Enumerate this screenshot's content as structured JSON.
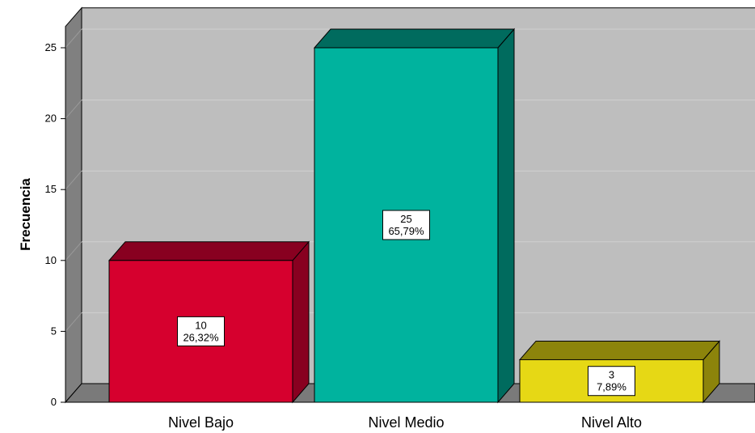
{
  "chart_data": {
    "type": "bar",
    "title": "",
    "xlabel": "",
    "ylabel": "Frecuencia",
    "categories": [
      "Nivel Bajo",
      "Nivel Medio",
      "Nivel Alto"
    ],
    "values": [
      10,
      25,
      3
    ],
    "percent_labels": [
      "26,32%",
      "65,79%",
      "7,89%"
    ],
    "yticks": [
      "0",
      "5",
      "10",
      "15",
      "20",
      "25"
    ],
    "ylim": [
      0,
      26.5
    ],
    "grid": true,
    "legend": "none",
    "colors": {
      "bars": [
        "#D6002E",
        "#00B39E",
        "#E6D815"
      ],
      "bar_tops": [
        "#880020",
        "#006B5E",
        "#8C840B"
      ],
      "plot_back": "#BEBEBE",
      "side_wall": "#808080",
      "floor": "#7A7A7A",
      "gridline": "#D0D0D0"
    }
  }
}
